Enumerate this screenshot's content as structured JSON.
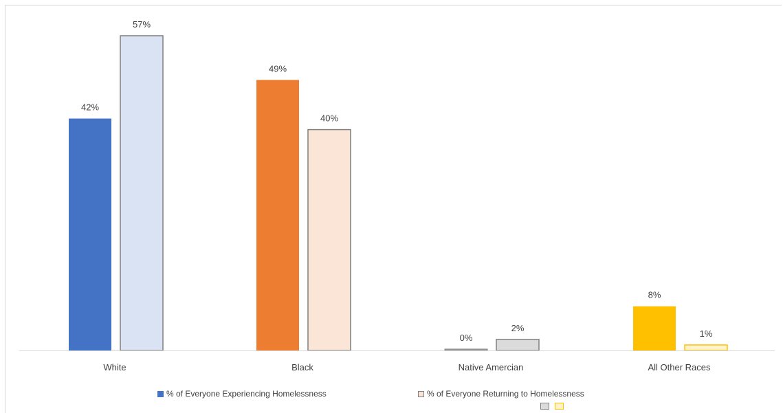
{
  "chart_data": {
    "type": "bar",
    "title": "",
    "xlabel": "",
    "ylabel": "",
    "ylim": [
      0,
      60
    ],
    "grid": false,
    "legend_position": "bottom",
    "categories": [
      "White",
      "Black",
      "Native Amercian",
      "All Other Races"
    ],
    "series": [
      {
        "name": "% of Everyone Experiencing Homelessness",
        "values": [
          42,
          49,
          0,
          8
        ],
        "value_labels": [
          "42%",
          "49%",
          "0%",
          "8%"
        ]
      },
      {
        "name": "% of Everyone Returning to Homelessness",
        "values": [
          57,
          40,
          2,
          1
        ],
        "value_labels": [
          "57%",
          "40%",
          "2%",
          "1%"
        ]
      }
    ],
    "category_colors": [
      {
        "fill": "#4472c4",
        "light": "#dae3f3"
      },
      {
        "fill": "#ed7d31",
        "light": "#fbe5d6"
      },
      {
        "fill": "#a5a5a5",
        "light": "#dbdbdb"
      },
      {
        "fill": "#ffc000",
        "light": "#fff2cc"
      }
    ],
    "legend_colors": {
      "series1": "#4472c4",
      "series2": "#fbe5d6",
      "extra": [
        "#dbdbdb",
        "#fff2cc"
      ]
    }
  }
}
